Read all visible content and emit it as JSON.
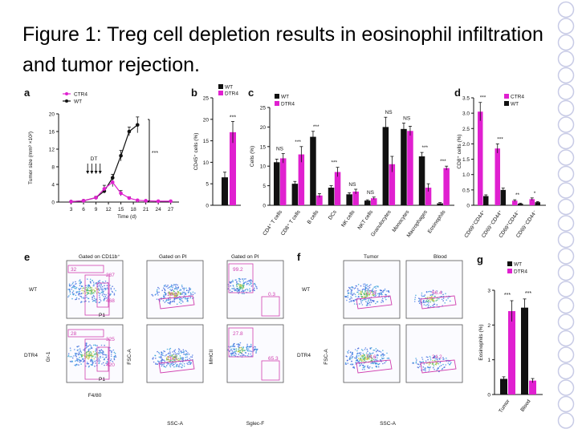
{
  "slide": {
    "title": "Figure 1: Treg cell depletion results in eosinophil infiltration and tumor rejection."
  },
  "colors": {
    "wt": "#111111",
    "dtr4": "#e020d0",
    "gate": "#d040b0",
    "deco": "#c8cbe6"
  },
  "panels": {
    "a": {
      "letter": "a",
      "legend": [
        "CTR4",
        "WT"
      ],
      "dt_label": "DT",
      "sig": "***"
    },
    "b": {
      "letter": "b",
      "legend": [
        "WT",
        "DTR4"
      ],
      "sig": "***"
    },
    "c": {
      "letter": "c",
      "legend": [
        "WT",
        "DTR4"
      ]
    },
    "d": {
      "letter": "d",
      "legend": [
        "CTR4",
        "WT"
      ]
    },
    "e": {
      "letter": "e",
      "gate_labels": [
        "Gated on CD11b⁺",
        "Gated on PI",
        "Gated on PI"
      ],
      "row_labels": [
        "WT",
        "DTR4"
      ],
      "numbers": {
        "wt_a": [
          "32",
          "287",
          "468",
          "P1"
        ],
        "wt_b": "18.9",
        "wt_c": [
          "99.2",
          "0.3"
        ],
        "dtr_a": [
          "28",
          "325",
          "420",
          "P1"
        ],
        "dtr_b": "76.5",
        "dtr_c": [
          "27.8",
          "65.3"
        ]
      },
      "axis_x": [
        "F4/80",
        "SSC-A",
        "Sglec-F"
      ],
      "axis_y": [
        "Gr-1",
        "FSC-A",
        "MHCII"
      ]
    },
    "f": {
      "letter": "f",
      "col_labels": [
        "Tumor",
        "Blood"
      ],
      "row_labels": [
        "WT",
        "DTR4"
      ],
      "numbers": {
        "wt_tumor": "17.8",
        "wt_blood": "66.4",
        "dtr_tumor": "74.6",
        "dtr_blood": "24.2"
      },
      "axis_x": "SSC-A",
      "axis_y": "FSC-A"
    },
    "g": {
      "letter": "g",
      "legend": [
        "WT",
        "DTR4"
      ]
    }
  },
  "chart_data": [
    {
      "panel": "a",
      "type": "line",
      "title": "",
      "xlabel": "Time (d)",
      "ylabel": "Tumor size (mm³ ×10²)",
      "x": [
        3,
        6,
        9,
        12,
        15,
        18,
        21,
        24,
        27
      ],
      "x_ticks": [
        "3",
        "6",
        "9",
        "12",
        "15",
        "18",
        "21",
        "24",
        "27"
      ],
      "ylim": [
        0,
        20
      ],
      "y_ticks": [
        0,
        4,
        8,
        12,
        16,
        20
      ],
      "series": [
        {
          "name": "WT",
          "x": [
            3,
            6,
            9,
            11,
            13,
            15,
            17,
            19
          ],
          "y": [
            0.1,
            0.3,
            1.0,
            2.5,
            5.5,
            10.5,
            16,
            17.5
          ],
          "err": [
            0,
            0,
            0.2,
            0.5,
            0.8,
            1.2,
            1.0,
            1.8
          ]
        },
        {
          "name": "CTR4",
          "x": [
            3,
            6,
            9,
            11,
            13,
            15,
            17,
            19,
            21,
            24,
            27
          ],
          "y": [
            0.1,
            0.3,
            1.0,
            3.0,
            4.5,
            2.0,
            0.9,
            0.4,
            0.3,
            0.2,
            0.2
          ],
          "err": [
            0,
            0,
            0.3,
            0.8,
            1.0,
            0.6,
            0.3,
            0,
            0,
            0,
            0
          ]
        }
      ],
      "dt_days": [
        7,
        8,
        9,
        10
      ]
    },
    {
      "panel": "b",
      "type": "bar",
      "ylabel": "CD45⁺ cells (%)",
      "ylim": [
        0,
        25
      ],
      "y_ticks": [
        0,
        5,
        10,
        15,
        20,
        25
      ],
      "categories": [
        "WT",
        "DTR4"
      ],
      "values": [
        6.5,
        17
      ],
      "err": [
        1.2,
        2.5
      ]
    },
    {
      "panel": "c",
      "type": "bar",
      "ylabel": "Cells (%)",
      "ylim": [
        0,
        25
      ],
      "y_ticks": [
        0,
        5,
        10,
        15,
        20,
        25
      ],
      "categories": [
        "CD4⁺ T cells",
        "CD8⁺ T cells",
        "B cells",
        "DCs",
        "NK cells",
        "NKT cells",
        "Granulocytes",
        "Monocytes",
        "Macrophages",
        "Eosinophils"
      ],
      "series": [
        {
          "name": "WT",
          "values": [
            11,
            5.5,
            17.5,
            4.5,
            2.8,
            1.2,
            20,
            19.5,
            12.5,
            0.5
          ],
          "err": [
            0.8,
            0.6,
            1.4,
            0.5,
            0.4,
            0.2,
            2.5,
            1.5,
            1.0,
            0.2
          ]
        },
        {
          "name": "DTR4",
          "values": [
            12,
            13,
            2.5,
            8.5,
            3.5,
            1.8,
            10.5,
            19,
            4.5,
            9.5
          ],
          "err": [
            1.2,
            2.0,
            0.5,
            1.2,
            0.6,
            0.3,
            2.0,
            1.2,
            1.0,
            0.5
          ]
        }
      ],
      "sig": [
        "NS",
        "***",
        "***",
        "***",
        "NS",
        "NS",
        "NS",
        "NS",
        "***",
        "***"
      ]
    },
    {
      "panel": "d",
      "type": "bar",
      "ylabel": "CD8⁺ cells (%)",
      "ylim": [
        0,
        3.5
      ],
      "y_ticks": [
        0,
        0.5,
        1.0,
        1.5,
        2.0,
        2.5,
        3.0,
        3.5
      ],
      "categories": [
        "CD69⁺CD44⁺",
        "CD69⁻CD44⁺",
        "CD69⁺CD44⁻",
        "CD69⁻CD44⁻"
      ],
      "series": [
        {
          "name": "CTR4",
          "values": [
            3.05,
            1.85,
            0.15,
            0.2
          ],
          "err": [
            0.3,
            0.15,
            0.03,
            0.04
          ]
        },
        {
          "name": "WT",
          "values": [
            0.3,
            0.5,
            0.05,
            0.1
          ],
          "err": [
            0.04,
            0.06,
            0.02,
            0.02
          ]
        }
      ],
      "sig": [
        "***",
        "***",
        "**",
        "*"
      ]
    },
    {
      "panel": "g",
      "type": "bar",
      "ylabel": "Eosinophils (%)",
      "ylim": [
        0,
        3
      ],
      "y_ticks": [
        0,
        1,
        2,
        3
      ],
      "categories": [
        "Tumor",
        "Blood"
      ],
      "series": [
        {
          "name": "WT",
          "values": [
            0.45,
            2.5
          ],
          "err": [
            0.06,
            0.25
          ]
        },
        {
          "name": "DTR4",
          "values": [
            2.4,
            0.4
          ],
          "err": [
            0.3,
            0.06
          ]
        }
      ],
      "sig": [
        "***",
        "***"
      ]
    }
  ]
}
